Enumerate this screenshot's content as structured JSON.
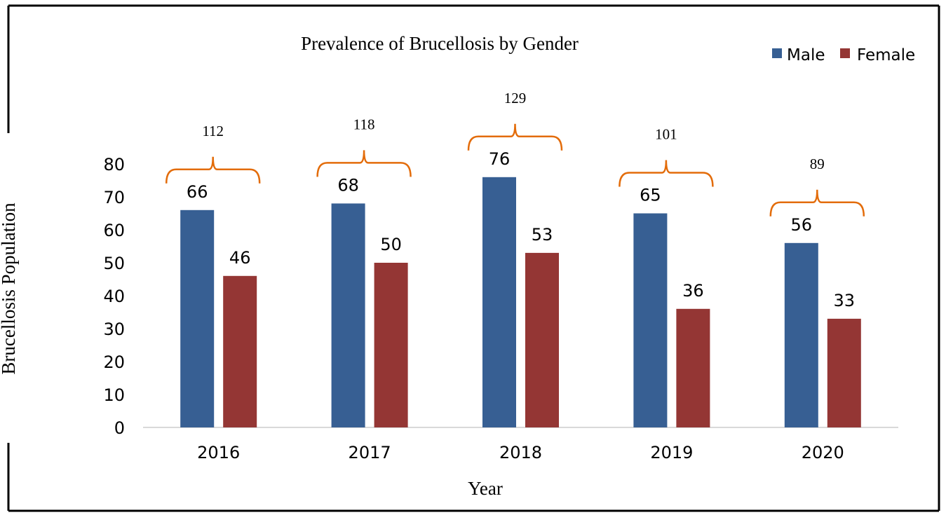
{
  "chart_data": {
    "type": "bar",
    "title": "Prevalence of Brucellosis by Gender",
    "xlabel": "Year",
    "ylabel": "Brucellosis Population",
    "categories": [
      "2016",
      "2017",
      "2018",
      "2019",
      "2020"
    ],
    "series": [
      {
        "name": "Male",
        "color": "#375F93",
        "values": [
          66,
          68,
          76,
          65,
          56
        ]
      },
      {
        "name": "Female",
        "color": "#943634",
        "values": [
          46,
          50,
          53,
          36,
          33
        ]
      }
    ],
    "totals": [
      112,
      118,
      129,
      101,
      89
    ],
    "bracket_color": "#E36C0A",
    "ylim": [
      0,
      80
    ],
    "yticks": [
      "0",
      "10",
      "20",
      "30",
      "40",
      "50",
      "60",
      "70",
      "80"
    ],
    "grid": false,
    "legend": "top-right"
  }
}
